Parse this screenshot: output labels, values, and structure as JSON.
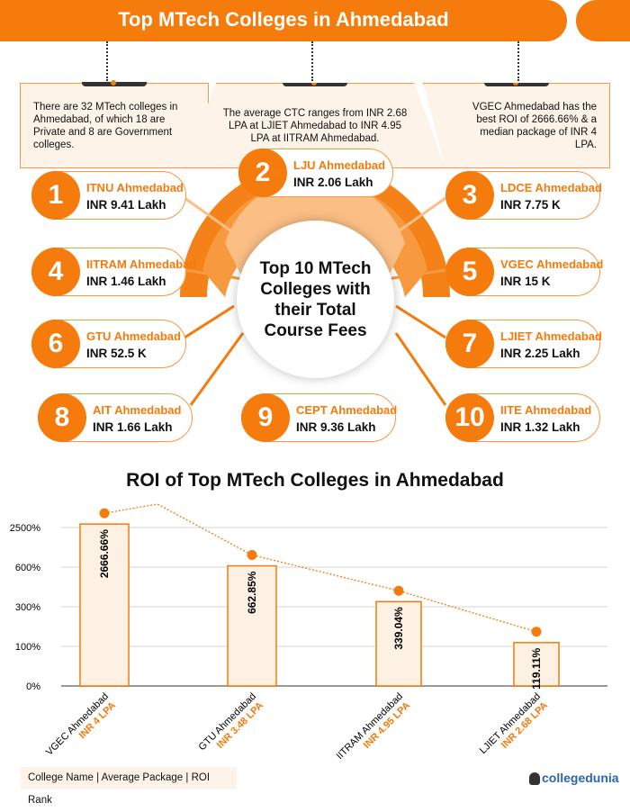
{
  "header": {
    "title": "Top MTech Colleges in Ahmedabad"
  },
  "info": [
    "There are 32 MTech colleges in Ahmedabad, of which 18 are Private and 8 are Government colleges.",
    "The average CTC ranges from INR 2.68 LPA at LJIET Ahmedabad to INR 4.95 LPA at IITRAM Ahmedabad.",
    "VGEC Ahmedabad has the best ROI of  2666.66% & a median package of INR 4 LPA."
  ],
  "center_label": "Top 10 MTech Colleges with their Total Course Fees",
  "colleges": [
    {
      "rank": "1",
      "name": "ITNU Ahmedabad",
      "fee": "INR 9.41 Lakh"
    },
    {
      "rank": "2",
      "name": "LJU Ahmedabad",
      "fee": "INR 2.06 Lakh"
    },
    {
      "rank": "3",
      "name": "LDCE Ahmedabad",
      "fee": "INR 7.75 K"
    },
    {
      "rank": "4",
      "name": "IITRAM Ahmedabad",
      "fee": "INR 1.46 Lakh"
    },
    {
      "rank": "5",
      "name": "VGEC Ahmedabad",
      "fee": "INR 15 K"
    },
    {
      "rank": "6",
      "name": "GTU Ahmedabad",
      "fee": "INR 52.5 K"
    },
    {
      "rank": "7",
      "name": "LJIET Ahmedabad",
      "fee": "INR 2.25 Lakh"
    },
    {
      "rank": "8",
      "name": "AIT Ahmedabad",
      "fee": "INR 1.66 Lakh"
    },
    {
      "rank": "9",
      "name": "CEPT Ahmedabad",
      "fee": "INR 9.36 Lakh"
    },
    {
      "rank": "10",
      "name": "IITE Ahmedabad",
      "fee": "INR 1.32 Lakh"
    }
  ],
  "chart_data": {
    "type": "bar",
    "title": "ROI of Top MTech Colleges in Ahmedabad",
    "categories": [
      "VGEC Ahmedabad",
      "GTU Ahmedabad",
      "IITRAM Ahmedabad",
      "LJIET Ahmedabad"
    ],
    "packages": [
      "INR 4 LPA",
      "INR 3.48 LPA",
      "INR 4.95 LPA",
      "INR 2.68 LPA"
    ],
    "values": [
      2666.66,
      662.85,
      339.04,
      119.11
    ],
    "data_labels": [
      "2666.66%",
      "662.85%",
      "339.04%",
      "119.11%"
    ],
    "y_ticks": [
      0,
      100,
      300,
      600,
      2500
    ],
    "y_tick_labels": [
      "0%",
      "100%",
      "300%",
      "600%",
      "2500%"
    ],
    "y_scale": "non-linear (equally spaced ticks)",
    "grid": true,
    "trend_line": "dotted orange line with dot markers above bars",
    "colors": {
      "accent": "#f47b0c",
      "bar_fill": "#fdf1e4",
      "package_text": "#f47b0c"
    }
  },
  "legend": "College Name  |  Average Package  |  ROI Rank",
  "brand": "collegedunia"
}
